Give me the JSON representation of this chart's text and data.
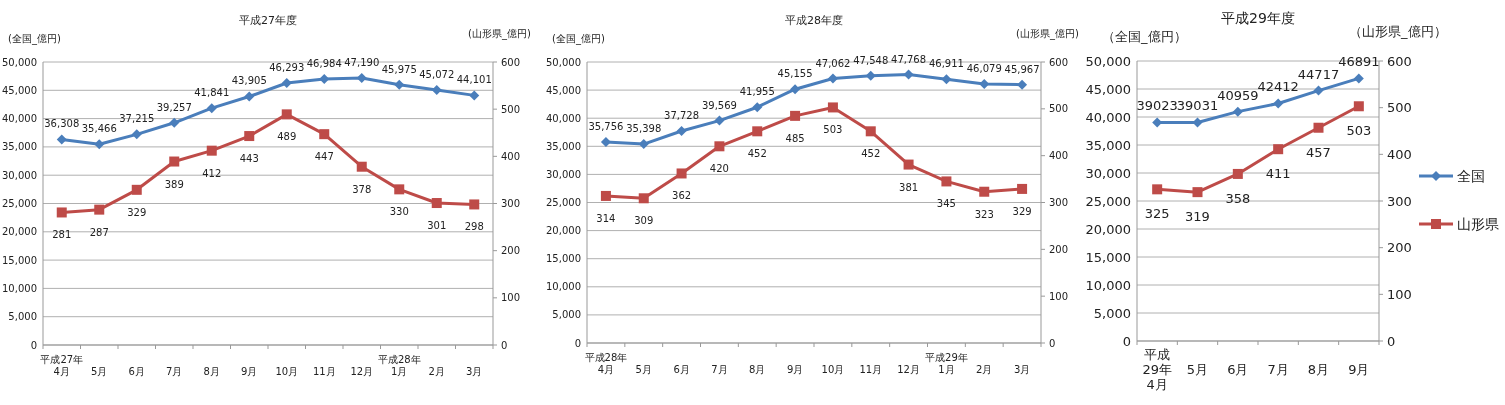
{
  "chart_data": [
    {
      "type": "line",
      "title": "平成27年度",
      "ylabel": "(全国_億円)",
      "y2label": "(山形県_億円)",
      "categories": [
        "平成27年\n4月",
        "5月",
        "6月",
        "7月",
        "8月",
        "9月",
        "10月",
        "11月",
        "12月",
        "平成28年\n1月",
        "2月",
        "3月"
      ],
      "series": [
        {
          "color": "#4a7ebb",
          "marker": "diamond",
          "values": [
            36308,
            35466,
            37215,
            39257,
            41841,
            43905,
            46293,
            46984,
            47190,
            45975,
            45072,
            44101
          ],
          "value_labels": [
            "36,308",
            "35,466",
            "37,215",
            "39,257",
            "41,841",
            "43,905",
            "46,293",
            "46,984",
            "47,190",
            "45,975",
            "45,072",
            "44,101"
          ]
        },
        {
          "color": "#be4b48",
          "marker": "square",
          "axis": "y2",
          "values": [
            281,
            287,
            329,
            389,
            412,
            443,
            489,
            447,
            378,
            330,
            301,
            298
          ],
          "value_labels": [
            "281",
            "287",
            "329",
            "389",
            "412",
            "443",
            "489",
            "447",
            "378",
            "330",
            "301",
            "298"
          ]
        }
      ],
      "ylim": [
        0,
        50000
      ],
      "yticks": [
        {
          "value": 0,
          "label": "0"
        },
        {
          "value": 5000,
          "label": "5,000"
        },
        {
          "value": 10000,
          "label": "10,000"
        },
        {
          "value": 15000,
          "label": "15,000"
        },
        {
          "value": 20000,
          "label": "20,000"
        },
        {
          "value": 25000,
          "label": "25,000"
        },
        {
          "value": 30000,
          "label": "30,000"
        },
        {
          "value": 35000,
          "label": "35,000"
        },
        {
          "value": 40000,
          "label": "40,000"
        },
        {
          "value": 45000,
          "label": "45,000"
        },
        {
          "value": 50000,
          "label": "50,000"
        }
      ],
      "y2lim": [
        0,
        600
      ],
      "y2ticks": [
        0,
        100,
        200,
        300,
        400,
        500,
        600
      ],
      "grid": "y",
      "legend": false
    },
    {
      "type": "line",
      "title": "平成28年度",
      "ylabel": "(全国_億円)",
      "y2label": "(山形県_億円)",
      "categories": [
        "平成28年\n4月",
        "5月",
        "6月",
        "7月",
        "8月",
        "9月",
        "10月",
        "11月",
        "12月",
        "平成29年\n1月",
        "2月",
        "3月"
      ],
      "series": [
        {
          "color": "#4a7ebb",
          "marker": "diamond",
          "values": [
            35756,
            35398,
            37728,
            39569,
            41955,
            45155,
            47062,
            47548,
            47768,
            46911,
            46079,
            45967
          ],
          "value_labels": [
            "35,756",
            "35,398",
            "37,728",
            "39,569",
            "41,955",
            "45,155",
            "47,062",
            "47,548",
            "47,768",
            "46,911",
            "46,079",
            "45,967"
          ]
        },
        {
          "color": "#be4b48",
          "marker": "square",
          "axis": "y2",
          "values": [
            314,
            309,
            362,
            420,
            452,
            485,
            503,
            452,
            381,
            345,
            323,
            329
          ],
          "value_labels": [
            "314",
            "309",
            "362",
            "420",
            "452",
            "485",
            "503",
            "452",
            "381",
            "345",
            "323",
            "329"
          ]
        }
      ],
      "ylim": [
        0,
        50000
      ],
      "yticks": [
        {
          "value": 0,
          "label": "0"
        },
        {
          "value": 5000,
          "label": "5,000"
        },
        {
          "value": 10000,
          "label": "10,000"
        },
        {
          "value": 15000,
          "label": "15,000"
        },
        {
          "value": 20000,
          "label": "20,000"
        },
        {
          "value": 25000,
          "label": "25,000"
        },
        {
          "value": 30000,
          "label": "30,000"
        },
        {
          "value": 35000,
          "label": "35,000"
        },
        {
          "value": 40000,
          "label": "40,000"
        },
        {
          "value": 45000,
          "label": "45,000"
        },
        {
          "value": 50000,
          "label": "50,000"
        }
      ],
      "y2lim": [
        0,
        600
      ],
      "y2ticks": [
        0,
        100,
        200,
        300,
        400,
        500,
        600
      ],
      "grid": "y",
      "legend": false
    },
    {
      "type": "line",
      "title": "平成29年度",
      "ylabel": "（全国_億円）",
      "y2label": "（山形県_億円）",
      "categories": [
        "平成\n29年\n4月",
        "5月",
        "6月",
        "7月",
        "8月",
        "9月"
      ],
      "series": [
        {
          "name": "全国",
          "color": "#4a7ebb",
          "marker": "diamond",
          "values": [
            39023,
            39031,
            40959,
            42412,
            44717,
            46891
          ]
        },
        {
          "name": "山形県",
          "color": "#be4b48",
          "marker": "square",
          "axis": "y2",
          "values": [
            325,
            319,
            358,
            411,
            457,
            503
          ]
        }
      ],
      "ylim": [
        0,
        50000
      ],
      "yticks": [
        {
          "value": 0,
          "label": "0"
        },
        {
          "value": 5000,
          "label": "5,000"
        },
        {
          "value": 10000,
          "label": "10,000"
        },
        {
          "value": 15000,
          "label": "15,000"
        },
        {
          "value": 20000,
          "label": "20,000"
        },
        {
          "value": 25000,
          "label": "25,000"
        },
        {
          "value": 30000,
          "label": "30,000"
        },
        {
          "value": 35000,
          "label": "35,000"
        },
        {
          "value": 40000,
          "label": "40,000"
        },
        {
          "value": 45000,
          "label": "45,000"
        },
        {
          "value": 50000,
          "label": "50,000"
        }
      ],
      "y2lim": [
        0,
        600
      ],
      "y2ticks": [
        0,
        100,
        200,
        300,
        400,
        500,
        600
      ],
      "grid": "y",
      "legend": "right",
      "data_labels": true
    }
  ]
}
